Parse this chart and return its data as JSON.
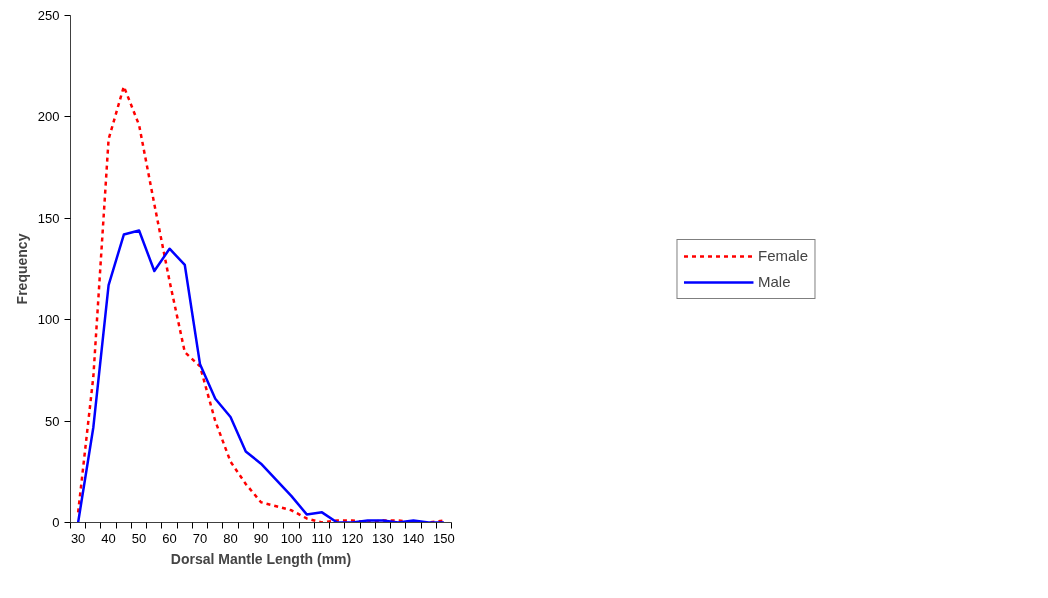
{
  "chart_data": {
    "type": "line",
    "xlabel": "Dorsal Mantle Length (mm)",
    "ylabel": "Frequency",
    "categories": [
      "30",
      null,
      "40",
      null,
      "50",
      null,
      "60",
      null,
      "70",
      null,
      "80",
      null,
      "90",
      null,
      "100",
      null,
      "110",
      null,
      "120",
      null,
      "130",
      null,
      "140",
      null,
      "150"
    ],
    "series": [
      {
        "name": "Female",
        "color": "#ff0000",
        "line_style": "dotted",
        "values": [
          5,
          72,
          189,
          215,
          196,
          157,
          119,
          84,
          77,
          50,
          30,
          19,
          10,
          8,
          6,
          2,
          0,
          1,
          1,
          0,
          1,
          1,
          0,
          0,
          1
        ]
      },
      {
        "name": "Male",
        "color": "#0000ff",
        "line_style": "solid",
        "values": [
          0,
          47,
          117,
          142,
          144,
          124,
          135,
          127,
          78,
          61,
          52,
          35,
          29,
          21,
          13,
          4,
          5,
          0,
          0,
          1,
          1,
          0,
          1,
          0,
          0
        ]
      }
    ],
    "ylim": [
      0,
      250
    ],
    "yticks": [
      0,
      50,
      100,
      150,
      200,
      250
    ],
    "grid": false,
    "legend": "right",
    "marker": "none"
  }
}
